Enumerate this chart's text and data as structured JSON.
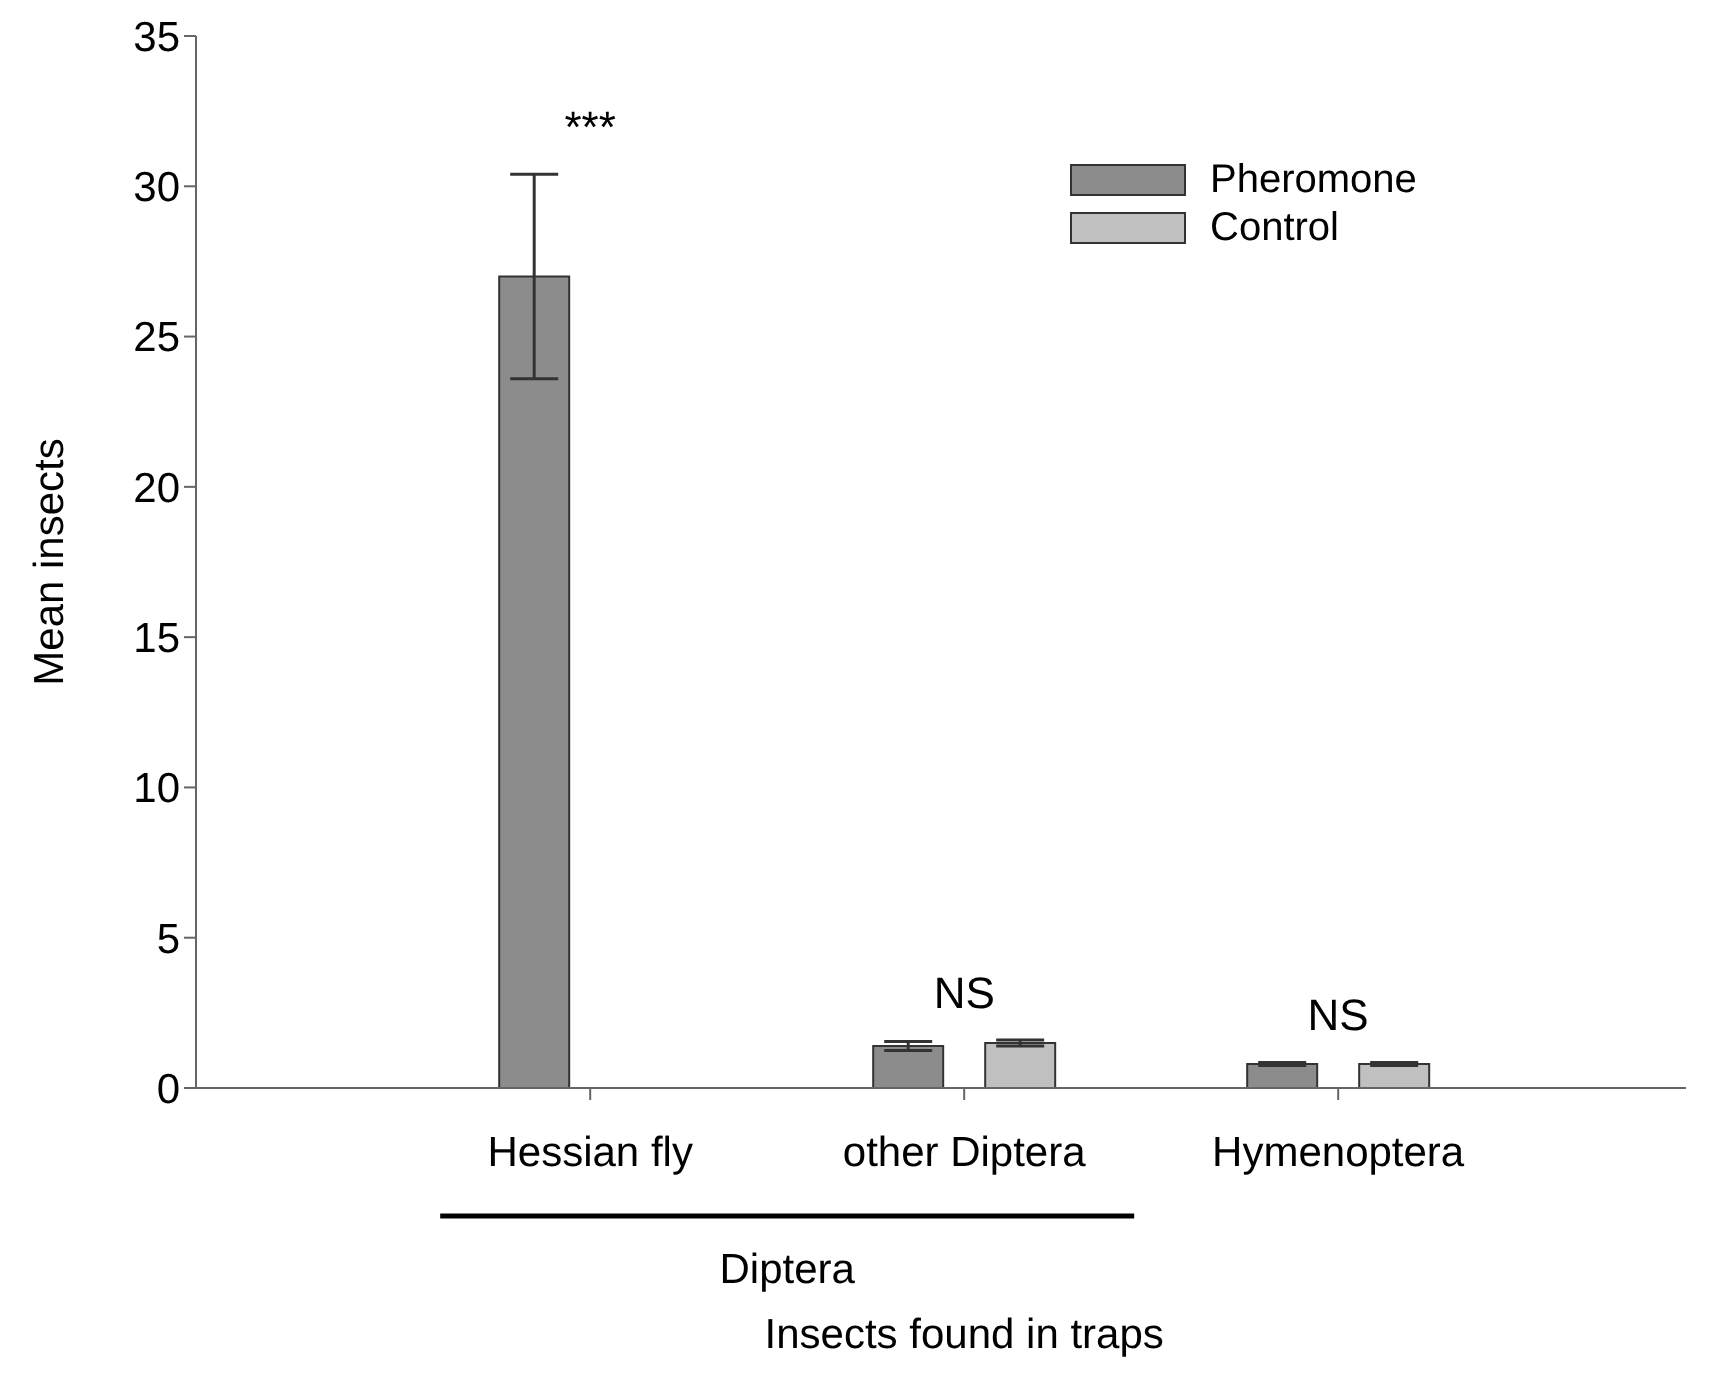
{
  "chart_data": {
    "type": "bar",
    "xlabel": "Insects found in traps",
    "ylabel": "Mean insects",
    "categories": [
      "Hessian fly",
      "other Diptera",
      "Hymenoptera"
    ],
    "series": [
      {
        "name": "Pheromone",
        "color": "#8c8c8c",
        "values": [
          27,
          1.4,
          0.8
        ],
        "errors": [
          3.4,
          0.15,
          0.05
        ]
      },
      {
        "name": "Control",
        "color": "#c0c0c0",
        "values": [
          0,
          1.5,
          0.8
        ],
        "errors": [
          null,
          0.1,
          0.05
        ]
      }
    ],
    "ylim": [
      0,
      35
    ],
    "yticks": [
      0,
      5,
      10,
      15,
      20,
      25,
      30,
      35
    ],
    "legend": "top right",
    "annotations": [
      "***",
      "NS",
      "NS",
      "Diptera"
    ]
  }
}
